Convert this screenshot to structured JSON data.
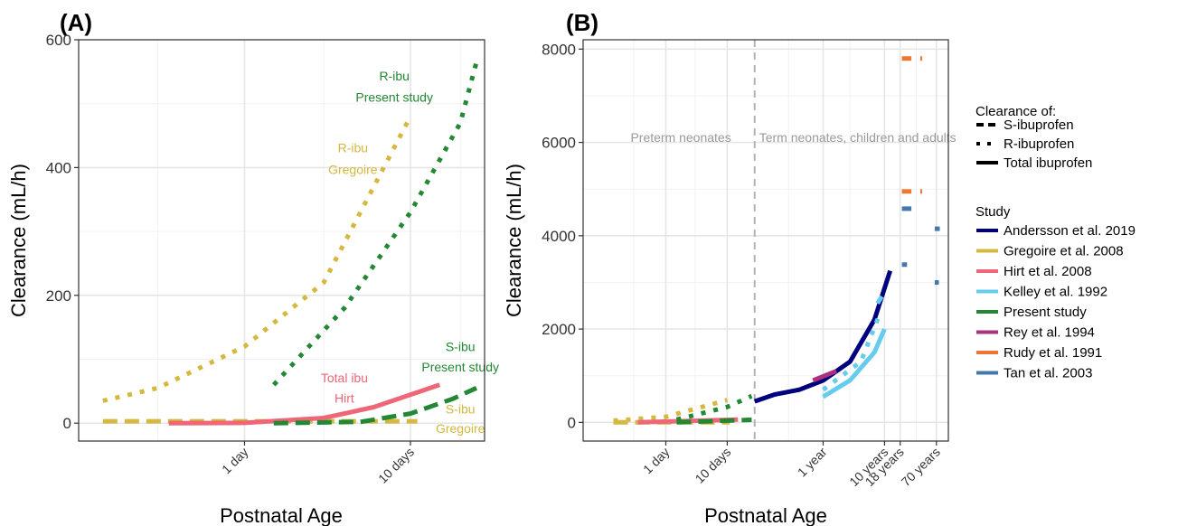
{
  "chart_data": [
    {
      "panel": "(A)",
      "type": "line",
      "xlabel": "Postnatal Age",
      "ylabel": "Clearance (mL/h)",
      "x_scale": "log",
      "x_unit": "days",
      "xlim": [
        0.1,
        28
      ],
      "ylim": [
        -28,
        600
      ],
      "x_ticks": [
        {
          "value": 1,
          "label": "1 day"
        },
        {
          "value": 10,
          "label": "10 days"
        }
      ],
      "y_ticks": [
        0,
        200,
        400,
        600
      ],
      "grid": true,
      "series": [
        {
          "name": "Gregoire et al. 2008",
          "clearance_of": "R-ibuprofen",
          "color": "#D4B83F",
          "dash": "dot",
          "points": [
            [
              0.14,
              35
            ],
            [
              0.3,
              55
            ],
            [
              1,
              120
            ],
            [
              3,
              220
            ],
            [
              10,
              480
            ]
          ]
        },
        {
          "name": "Gregoire et al. 2008",
          "clearance_of": "S-ibuprofen",
          "color": "#D4B83F",
          "dash": "dash",
          "points": [
            [
              0.14,
              3
            ],
            [
              1,
              3
            ],
            [
              10,
              3
            ],
            [
              11,
              3
            ]
          ]
        },
        {
          "name": "Hirt et al. 2008",
          "clearance_of": "Total ibuprofen",
          "color": "#EE6677",
          "dash": "solid",
          "points": [
            [
              0.35,
              0
            ],
            [
              1,
              0.5
            ],
            [
              3,
              8
            ],
            [
              6,
              25
            ],
            [
              15,
              60
            ]
          ]
        },
        {
          "name": "Present study",
          "clearance_of": "R-ibuprofen",
          "color": "#228833",
          "dash": "dot",
          "points": [
            [
              1.5,
              60
            ],
            [
              4,
              180
            ],
            [
              10,
              330
            ],
            [
              20,
              470
            ],
            [
              25,
              565
            ]
          ]
        },
        {
          "name": "Present study",
          "clearance_of": "S-ibuprofen",
          "color": "#228833",
          "dash": "dash",
          "points": [
            [
              1.5,
              0
            ],
            [
              5,
              2
            ],
            [
              10,
              15
            ],
            [
              18,
              38
            ],
            [
              25,
              55
            ]
          ]
        }
      ],
      "annotations": [
        {
          "text": "R-ibu",
          "x": 8,
          "y": 536,
          "color": "#228833"
        },
        {
          "text": "Present study",
          "x": 8,
          "y": 503,
          "color": "#228833"
        },
        {
          "text": "R-ibu",
          "x": 4.5,
          "y": 424,
          "color": "#D4B83F"
        },
        {
          "text": "Gregoire",
          "x": 4.5,
          "y": 390,
          "color": "#D4B83F"
        },
        {
          "text": "S-ibu",
          "x": 20,
          "y": 113,
          "color": "#228833"
        },
        {
          "text": "Present study",
          "x": 20,
          "y": 81,
          "color": "#228833"
        },
        {
          "text": "Total ibu",
          "x": 4,
          "y": 64,
          "color": "#EE6677"
        },
        {
          "text": "Hirt",
          "x": 4,
          "y": 32,
          "color": "#EE6677"
        },
        {
          "text": "S-ibu",
          "x": 20,
          "y": 15,
          "color": "#D4B83F"
        },
        {
          "text": "Gregoire",
          "x": 20,
          "y": -15,
          "color": "#D4B83F"
        }
      ]
    },
    {
      "panel": "(B)",
      "type": "line",
      "xlabel": "Postnatal Age",
      "ylabel": "Clearance (mL/h)",
      "x_scale": "log",
      "x_unit": "days",
      "xlim": [
        0.045,
        40000
      ],
      "ylim": [
        -400,
        8200
      ],
      "x_ticks": [
        {
          "value": 1,
          "label": "1 day"
        },
        {
          "value": 10,
          "label": "10 days"
        },
        {
          "value": 365,
          "label": "1 year"
        },
        {
          "value": 3650,
          "label": "10 years"
        },
        {
          "value": 6570,
          "label": "18 years"
        },
        {
          "value": 25550,
          "label": "70 years"
        }
      ],
      "y_ticks": [
        0,
        2000,
        4000,
        6000,
        8000
      ],
      "grid": true,
      "divider": {
        "x": 28,
        "left_text": "Preterm neonates",
        "right_text": "Term neonates, children and adults"
      },
      "series": [
        {
          "name": "Gregoire et al. 2008",
          "clearance_of": "R-ibuprofen",
          "color": "#D4B83F",
          "dash": "dot",
          "points": [
            [
              0.14,
              35
            ],
            [
              1,
              120
            ],
            [
              10,
              480
            ]
          ]
        },
        {
          "name": "Gregoire et al. 2008",
          "clearance_of": "S-ibuprofen",
          "color": "#D4B83F",
          "dash": "dash",
          "points": [
            [
              0.14,
              3
            ],
            [
              11,
              3
            ]
          ]
        },
        {
          "name": "Hirt et al. 2008",
          "clearance_of": "Total ibuprofen",
          "color": "#EE6677",
          "dash": "solid",
          "points": [
            [
              0.35,
              0
            ],
            [
              15,
              60
            ]
          ]
        },
        {
          "name": "Present study",
          "clearance_of": "R-ibuprofen",
          "color": "#228833",
          "dash": "dot",
          "points": [
            [
              1.5,
              60
            ],
            [
              10,
              330
            ],
            [
              25,
              565
            ]
          ]
        },
        {
          "name": "Present study",
          "clearance_of": "S-ibuprofen",
          "color": "#228833",
          "dash": "dash",
          "points": [
            [
              1.5,
              0
            ],
            [
              25,
              55
            ]
          ]
        },
        {
          "name": "Andersson et al. 2019",
          "clearance_of": "Total ibuprofen",
          "color": "#00007F",
          "dash": "solid",
          "points": [
            [
              28,
              450
            ],
            [
              60,
              600
            ],
            [
              150,
              700
            ],
            [
              365,
              900
            ],
            [
              1000,
              1300
            ],
            [
              2500,
              2200
            ],
            [
              4500,
              3250
            ]
          ]
        },
        {
          "name": "Rey et al. 1994",
          "clearance_of": "Total ibuprofen",
          "color": "#A8327D",
          "dash": "solid",
          "points": [
            [
              250,
              900
            ],
            [
              600,
              1100
            ]
          ]
        },
        {
          "name": "Kelley et al. 1992",
          "clearance_of": "Total ibuprofen",
          "color": "#66CCEE",
          "dash": "solid",
          "points": [
            [
              365,
              550
            ],
            [
              1000,
              900
            ],
            [
              2500,
              1500
            ],
            [
              3650,
              2000
            ]
          ]
        },
        {
          "name": "Kelley et al. 1992",
          "clearance_of": "S-ibuprofen",
          "color": "#66CCEE",
          "dash": "dash",
          "points": [
            [
              2800,
              2550
            ],
            [
              3300,
              2700
            ]
          ]
        },
        {
          "name": "Kelley et al. 1992",
          "clearance_of": "R-ibuprofen",
          "color": "#66CCEE",
          "dash": "dot",
          "points": [
            [
              365,
              700
            ],
            [
              1500,
              1300
            ],
            [
              3000,
              2300
            ]
          ]
        },
        {
          "name": "Rudy et al. 1991",
          "clearance_of": "S-ibuprofen",
          "color": "#EE7733",
          "dash": "dash",
          "points": [
            [
              7000,
              7800
            ],
            [
              10000,
              7800
            ]
          ]
        },
        {
          "name": "Rudy et al. 1991",
          "clearance_of": "S-ibuprofen",
          "color": "#EE7733",
          "dash": "dash",
          "points": [
            [
              7000,
              4950
            ],
            [
              10000,
              4950
            ]
          ]
        },
        {
          "name": "Rudy et al. 1991",
          "clearance_of": "S-ibuprofen",
          "color": "#EE7733",
          "dash": "dash",
          "points": [
            [
              14000,
              7800
            ],
            [
              15000,
              7800
            ]
          ]
        },
        {
          "name": "Rudy et al. 1991",
          "clearance_of": "S-ibuprofen",
          "color": "#EE7733",
          "dash": "dash",
          "points": [
            [
              14000,
              4950
            ],
            [
              15000,
              4950
            ]
          ]
        },
        {
          "name": "Tan et al. 2003",
          "clearance_of": "S-ibuprofen",
          "color": "#4477AA",
          "dash": "dash",
          "points": [
            [
              7000,
              4580
            ],
            [
              10000,
              4580
            ]
          ]
        },
        {
          "name": "Tan et al. 2003",
          "clearance_of": "S-ibuprofen",
          "color": "#4477AA",
          "dash": "dash",
          "points": [
            [
              7000,
              3380
            ],
            [
              8500,
              3380
            ]
          ]
        },
        {
          "name": "Tan et al. 2003",
          "clearance_of": "S-ibuprofen",
          "color": "#4477AA",
          "dash": "dash",
          "points": [
            [
              24000,
              4150
            ],
            [
              29000,
              4150
            ]
          ]
        },
        {
          "name": "Tan et al. 2003",
          "clearance_of": "S-ibuprofen",
          "color": "#4477AA",
          "dash": "dash",
          "points": [
            [
              24000,
              3000
            ],
            [
              28000,
              3000
            ]
          ]
        }
      ]
    }
  ],
  "legend": {
    "linetype_title": "Clearance of:",
    "linetypes": [
      {
        "label": "S-ibuprofen",
        "dash": "dash"
      },
      {
        "label": "R-ibuprofen",
        "dash": "dot"
      },
      {
        "label": "Total ibuprofen",
        "dash": "solid"
      }
    ],
    "study_title": "Study",
    "studies": [
      {
        "label": "Andersson et al. 2019",
        "color": "#00007F"
      },
      {
        "label": "Gregoire et al. 2008",
        "color": "#D4B83F"
      },
      {
        "label": "Hirt et al. 2008",
        "color": "#EE6677"
      },
      {
        "label": "Kelley et al. 1992",
        "color": "#66CCEE"
      },
      {
        "label": "Present study",
        "color": "#228833"
      },
      {
        "label": "Rey et al. 1994",
        "color": "#A8327D"
      },
      {
        "label": "Rudy et al. 1991",
        "color": "#EE7733"
      },
      {
        "label": "Tan et al. 2003",
        "color": "#4477AA"
      }
    ]
  }
}
